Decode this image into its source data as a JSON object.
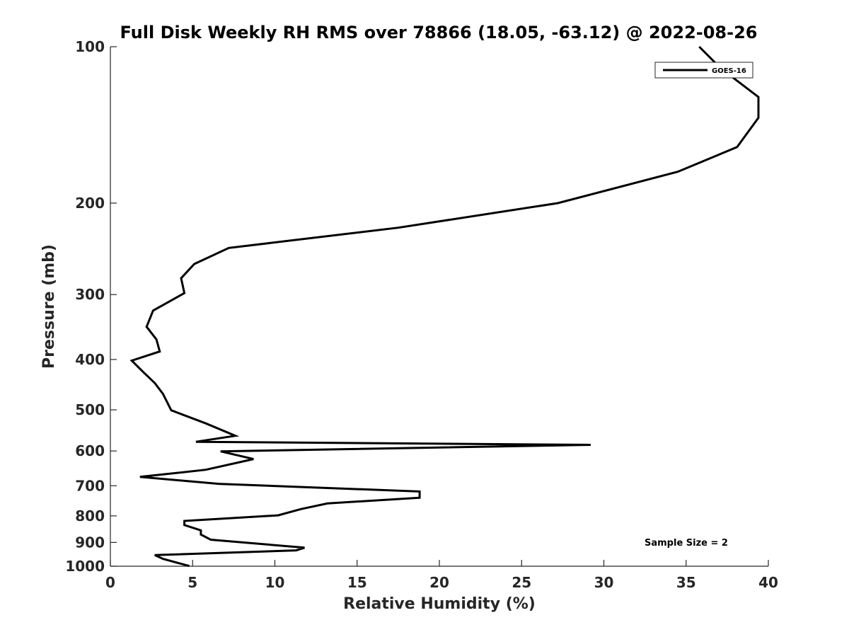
{
  "chart_data": {
    "type": "line",
    "title": "Full Disk Weekly RH RMS over 78866 (18.05, -63.12) @ 2022-08-26",
    "xlabel": "Relative Humidity (%)",
    "ylabel": "Pressure (mb)",
    "xlim": [
      0,
      40
    ],
    "ylim": [
      100,
      1000
    ],
    "y_scale": "log",
    "y_reversed": true,
    "x_ticks": [
      0,
      5,
      10,
      15,
      20,
      25,
      30,
      35,
      40
    ],
    "y_ticks": [
      100,
      200,
      300,
      400,
      500,
      600,
      700,
      800,
      900,
      1000
    ],
    "grid": false,
    "legend_position": "top-right",
    "annotation": "Sample Size = 2",
    "series": [
      {
        "name": "GOES-16",
        "color": "#000000",
        "x": [
          35.8,
          37.1,
          39.4,
          39.4,
          38.1,
          34.5,
          27.2,
          17.5,
          7.2,
          5.1,
          4.3,
          4.5,
          2.6,
          2.2,
          2.8,
          3.0,
          1.3,
          2.0,
          2.7,
          3.2,
          3.7,
          5.8,
          7.6,
          5.2,
          29.2,
          6.7,
          8.7,
          5.8,
          1.8,
          6.6,
          18.8,
          18.8,
          13.2,
          11.6,
          10.2,
          4.5,
          4.5,
          5.5,
          5.5,
          6.1,
          11.8,
          11.3,
          2.7,
          3.2,
          4.8
        ],
        "y": [
          100,
          110,
          125,
          137,
          156,
          174,
          200,
          223,
          244,
          262,
          279,
          298,
          322,
          346,
          366,
          386,
          402,
          423,
          444,
          466,
          501,
          531,
          561,
          576,
          584,
          601,
          622,
          652,
          673,
          694,
          718,
          738,
          757,
          776,
          798,
          818,
          833,
          853,
          869,
          889,
          921,
          932,
          952,
          968,
          999
        ]
      }
    ]
  }
}
